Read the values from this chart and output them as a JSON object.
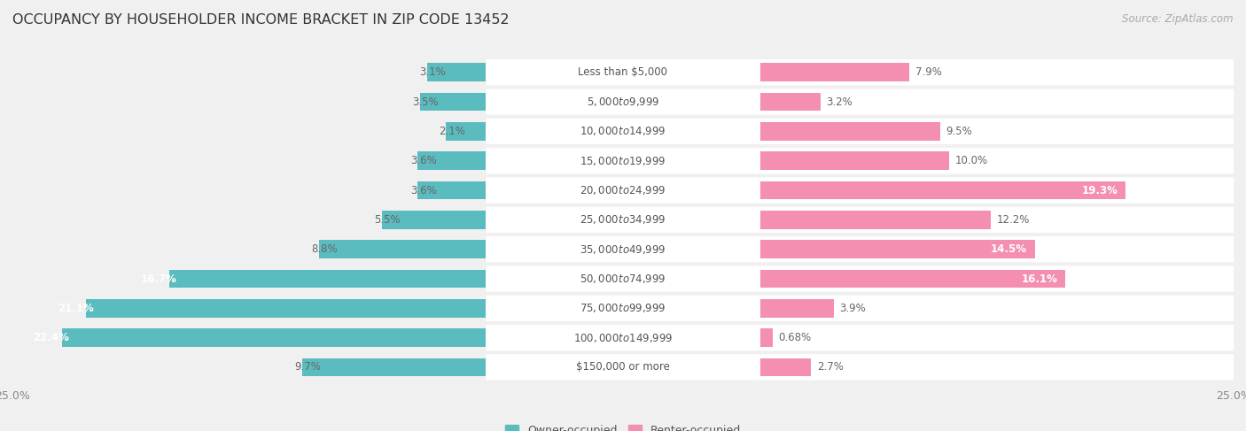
{
  "title": "OCCUPANCY BY HOUSEHOLDER INCOME BRACKET IN ZIP CODE 13452",
  "source": "Source: ZipAtlas.com",
  "categories": [
    "Less than $5,000",
    "$5,000 to $9,999",
    "$10,000 to $14,999",
    "$15,000 to $19,999",
    "$20,000 to $24,999",
    "$25,000 to $34,999",
    "$35,000 to $49,999",
    "$50,000 to $74,999",
    "$75,000 to $99,999",
    "$100,000 to $149,999",
    "$150,000 or more"
  ],
  "owner_values": [
    3.1,
    3.5,
    2.1,
    3.6,
    3.6,
    5.5,
    8.8,
    16.7,
    21.1,
    22.4,
    9.7
  ],
  "renter_values": [
    7.9,
    3.2,
    9.5,
    10.0,
    19.3,
    12.2,
    14.5,
    16.1,
    3.9,
    0.68,
    2.7
  ],
  "owner_color": "#5bbcbf",
  "renter_color": "#f48fb1",
  "background_color": "#f0f0f0",
  "bar_background": "#ffffff",
  "row_bg_color": "#e8e8e8",
  "max_value": 25.0,
  "title_fontsize": 11.5,
  "label_fontsize": 8.5,
  "cat_fontsize": 8.5,
  "tick_fontsize": 9,
  "source_fontsize": 8.5,
  "inside_label_threshold_owner": 10.0,
  "inside_label_threshold_renter": 14.0
}
